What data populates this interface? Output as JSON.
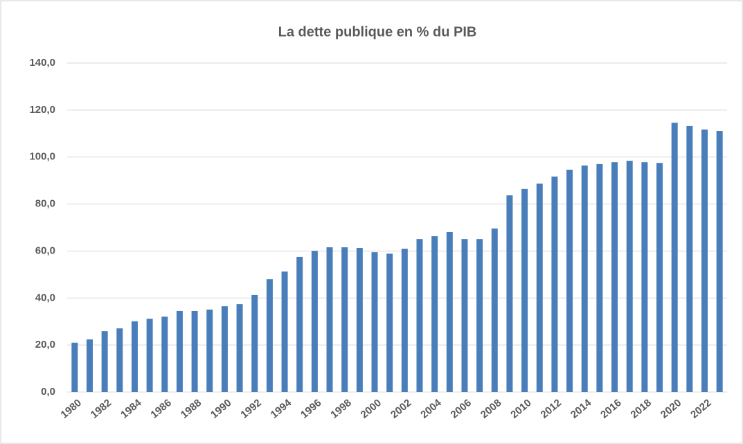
{
  "chart_data": {
    "type": "bar",
    "title": "La dette publique en % du PIB",
    "categories": [
      "1980",
      null,
      "1982",
      null,
      "1984",
      null,
      "1986",
      null,
      "1988",
      null,
      "1990",
      null,
      "1992",
      null,
      "1994",
      null,
      "1996",
      null,
      "1998",
      null,
      "2000",
      null,
      "2002",
      null,
      "2004",
      null,
      "2006",
      null,
      "2008",
      null,
      "2010",
      null,
      "2012",
      null,
      "2014",
      null,
      "2016",
      null,
      "2018",
      null,
      "2020",
      null,
      "2022",
      null
    ],
    "values": [
      21,
      22.4,
      25.9,
      27.1,
      30.1,
      31.2,
      32.1,
      34.5,
      34.5,
      35.1,
      36.5,
      37.4,
      41.3,
      48.0,
      51.3,
      57.5,
      60.1,
      61.6,
      61.6,
      61.3,
      59.5,
      58.9,
      61.0,
      65.1,
      66.3,
      68.1,
      65.1,
      65.1,
      69.6,
      83.7,
      86.4,
      88.7,
      91.7,
      94.6,
      96.4,
      97.0,
      97.8,
      98.4,
      97.8,
      97.5,
      114.6,
      113.2,
      111.7,
      111.1
    ],
    "color": "#4a7ebb",
    "ylim": [
      0,
      140
    ],
    "yticks": [
      {
        "value": 0,
        "label": "0,0"
      },
      {
        "value": 20,
        "label": "20,0"
      },
      {
        "value": 40,
        "label": "40,0"
      },
      {
        "value": 60,
        "label": "60,0"
      },
      {
        "value": 80,
        "label": "80,0"
      },
      {
        "value": 100,
        "label": "100,0"
      },
      {
        "value": 120,
        "label": "120,0"
      },
      {
        "value": 140,
        "label": "140,0"
      }
    ],
    "grid": true
  }
}
